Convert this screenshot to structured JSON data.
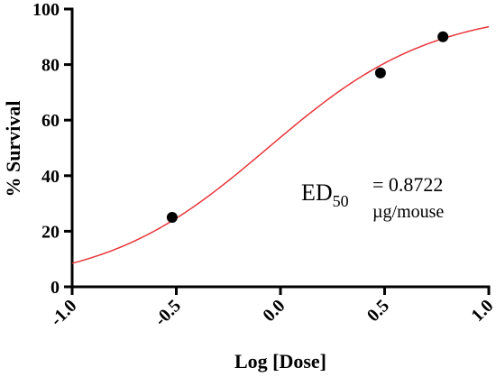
{
  "chart_data": {
    "type": "scatter",
    "xlabel": "Log [Dose]",
    "ylabel": "% Survival",
    "xlim": [
      -1.0,
      1.0
    ],
    "ylim": [
      0,
      100
    ],
    "x_ticks": [
      "-1.0",
      "-0.5",
      "0.0",
      "0.5",
      "1.0"
    ],
    "y_ticks": [
      "0",
      "20",
      "40",
      "60",
      "80",
      "100"
    ],
    "points": [
      {
        "x": -0.52,
        "y": 25
      },
      {
        "x": 0.48,
        "y": 77
      },
      {
        "x": 0.78,
        "y": 90
      }
    ],
    "fit_curve": {
      "type": "sigmoid",
      "bottom": 0,
      "top": 100,
      "log_ec50": -0.06,
      "hill_slope": 1.1,
      "x_range": [
        -1.0,
        1.0
      ],
      "color": "#e8353a"
    },
    "point_color": "#000000",
    "annotation": {
      "label_main": "ED",
      "label_sub": "50",
      "value": "= 0.8722",
      "unit": "µg/mouse"
    }
  }
}
